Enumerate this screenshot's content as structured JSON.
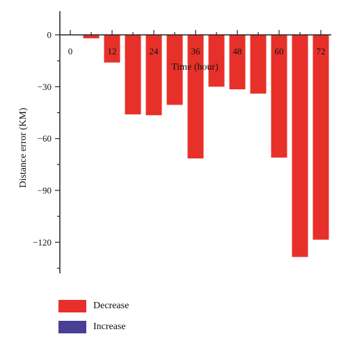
{
  "chart_data": {
    "type": "bar",
    "xlabel": "Time (hour)",
    "ylabel": "Distance error (KM)",
    "x_ticks": [
      0,
      12,
      24,
      36,
      48,
      60,
      72
    ],
    "y_ticks": [
      0,
      -30,
      -60,
      -90,
      -120
    ],
    "xlim": [
      -3,
      75
    ],
    "ylim": [
      -138,
      0
    ],
    "bar_width_hours": 4.6,
    "series": [
      {
        "name": "Decrease",
        "color": "#e8302a",
        "x": [
          6,
          12,
          18,
          24,
          30,
          36,
          42,
          48,
          54,
          60,
          66,
          72
        ],
        "values": [
          -2,
          -16,
          -46,
          -46.5,
          -40.5,
          -71.5,
          -30,
          -31.5,
          -34,
          -71,
          -128.5,
          -118.5
        ]
      },
      {
        "name": "Increase",
        "color": "#4a3f95",
        "x": [],
        "values": []
      }
    ],
    "legend": [
      {
        "label": "Decrease",
        "color": "#e8302a"
      },
      {
        "label": "Increase",
        "color": "#4a3f95"
      }
    ],
    "legend_position": "bottom-left",
    "grid": false
  }
}
